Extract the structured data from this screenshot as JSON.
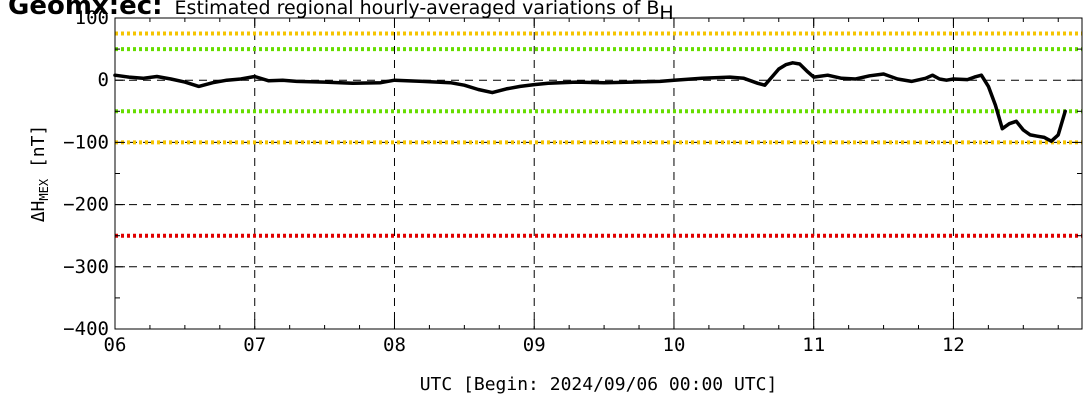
{
  "chart_data": {
    "type": "line",
    "title_bold": "Geomx:ec:",
    "title_rest": "Estimated regional hourly-averaged variations of B",
    "title_subscript": "H",
    "xlabel": "UTC [Begin: 2024/09/06 00:00 UTC]",
    "ylabel": "ΔH",
    "ylabel_subscript": "MEX",
    "ylabel_unit": " [nT]",
    "xlim": [
      6,
      12.92
    ],
    "ylim": [
      -400,
      100
    ],
    "x_tick_labels": [
      "06",
      "07",
      "08",
      "09",
      "10",
      "11",
      "12"
    ],
    "y_tick_labels": [
      "100",
      "0",
      "−100",
      "−200",
      "−300",
      "−400"
    ],
    "y_ticks": [
      100,
      0,
      -100,
      -200,
      -300,
      -400
    ],
    "grid": true,
    "thresholds": [
      {
        "value": 75,
        "color": "#f5c400"
      },
      {
        "value": 50,
        "color": "#66dd00"
      },
      {
        "value": -50,
        "color": "#66dd00"
      },
      {
        "value": -100,
        "color": "#f5c400"
      },
      {
        "value": -250,
        "color": "#e00000"
      }
    ],
    "series": [
      {
        "color": "#000000",
        "x": [
          6.0,
          6.1,
          6.2,
          6.3,
          6.4,
          6.5,
          6.6,
          6.7,
          6.8,
          6.9,
          7.0,
          7.1,
          7.2,
          7.3,
          7.5,
          7.7,
          7.9,
          8.0,
          8.2,
          8.4,
          8.5,
          8.6,
          8.7,
          8.8,
          8.9,
          9.0,
          9.1,
          9.3,
          9.5,
          9.7,
          9.9,
          10.0,
          10.2,
          10.4,
          10.5,
          10.6,
          10.65,
          10.7,
          10.75,
          10.8,
          10.85,
          10.9,
          10.95,
          11.0,
          11.1,
          11.2,
          11.3,
          11.4,
          11.5,
          11.6,
          11.7,
          11.8,
          11.85,
          11.9,
          11.95,
          12.0,
          12.1,
          12.15,
          12.2,
          12.25,
          12.3,
          12.35,
          12.4,
          12.45,
          12.5,
          12.55,
          12.6,
          12.65,
          12.7,
          12.75,
          12.8
        ],
        "y": [
          8,
          5,
          3,
          6,
          2,
          -3,
          -10,
          -4,
          0,
          2,
          6,
          -1,
          0,
          -2,
          -3,
          -5,
          -4,
          0,
          -2,
          -4,
          -8,
          -15,
          -20,
          -14,
          -10,
          -7,
          -5,
          -3,
          -4,
          -3,
          -2,
          0,
          3,
          5,
          3,
          -5,
          -8,
          5,
          18,
          25,
          28,
          26,
          15,
          5,
          8,
          3,
          2,
          7,
          10,
          2,
          -2,
          3,
          8,
          2,
          0,
          2,
          1,
          5,
          8,
          -10,
          -40,
          -78,
          -70,
          -66,
          -80,
          -88,
          -90,
          -92,
          -98,
          -88,
          -50
        ]
      }
    ]
  }
}
